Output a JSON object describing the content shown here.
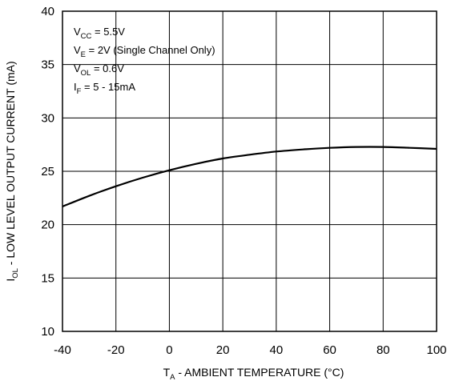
{
  "chart_data": {
    "type": "line",
    "title": "",
    "xlabel": {
      "main": "T",
      "sub": "A",
      "rest": " - AMBIENT TEMPERATURE (°C)"
    },
    "ylabel": {
      "main": "I",
      "sub": "OL",
      "rest": " - LOW LEVEL OUTPUT CURRENT (mA)"
    },
    "xlim": [
      -40,
      100
    ],
    "ylim": [
      10,
      40
    ],
    "xticks": [
      -40,
      -20,
      0,
      20,
      40,
      60,
      80,
      100
    ],
    "yticks": [
      10,
      15,
      20,
      25,
      30,
      35,
      40
    ],
    "x_tick_labels": [
      "-40",
      "-20",
      "0",
      "20",
      "40",
      "60",
      "80",
      "100"
    ],
    "y_tick_labels": [
      "10",
      "15",
      "20",
      "25",
      "30",
      "35",
      "40"
    ],
    "grid": true,
    "series": [
      {
        "x": [
          -40,
          -30,
          -20,
          -10,
          0,
          10,
          20,
          30,
          40,
          50,
          60,
          70,
          80,
          90,
          100
        ],
        "y": [
          21.7,
          22.7,
          23.6,
          24.4,
          25.1,
          25.7,
          26.2,
          26.55,
          26.85,
          27.05,
          27.2,
          27.28,
          27.28,
          27.2,
          27.1
        ]
      }
    ],
    "annotations": [
      {
        "main": "V",
        "sub": "CC",
        "rest": " = 5.5V"
      },
      {
        "main": "V",
        "sub": "E",
        "rest": " = 2V (Single Channel Only)"
      },
      {
        "main": "V",
        "sub": "OL",
        "rest": " = 0.6V"
      },
      {
        "main": "I",
        "sub": "F",
        "rest": " = 5 - 15mA"
      }
    ],
    "colors": {
      "line": "#000000",
      "grid": "#000000",
      "frame": "#000000"
    }
  }
}
